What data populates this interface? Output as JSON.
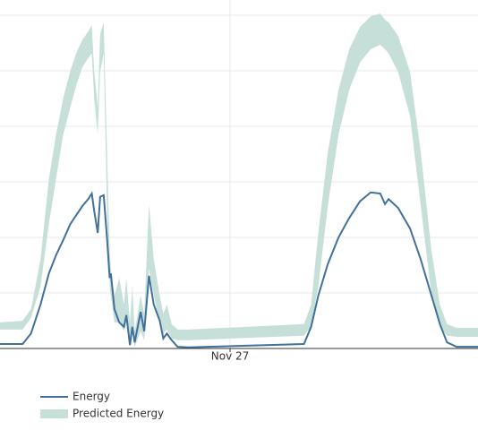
{
  "chart_data": {
    "type": "line",
    "x": [
      4.7,
      6.6,
      7.3,
      8.1,
      8.8,
      9.4,
      10.0,
      10.6,
      11.1,
      11.6,
      12.1,
      12.4,
      12.6,
      12.9,
      13.1,
      13.4,
      13.7,
      13.9,
      14.0,
      14.3,
      14.7,
      15.1,
      15.3,
      15.6,
      15.8,
      16.0,
      16.5,
      16.8,
      17.2,
      17.6,
      18.1,
      18.4,
      18.7,
      19.1,
      19.6,
      20.5,
      30.2,
      30.8,
      31.4,
      32.2,
      33.1,
      34.0,
      34.9,
      35.8,
      36.6,
      37.0,
      37.3,
      38.1,
      39.1,
      40.0,
      40.9,
      41.6,
      42.2,
      43.0,
      44.8
    ],
    "series": [
      {
        "name": "Energy",
        "color": "#41709b",
        "values": [
          0.08,
          0.08,
          0.27,
          0.79,
          1.35,
          1.68,
          1.95,
          2.24,
          2.4,
          2.56,
          2.69,
          2.79,
          2.48,
          2.08,
          2.73,
          2.76,
          1.92,
          1.27,
          1.35,
          0.71,
          0.47,
          0.39,
          0.6,
          0.06,
          0.39,
          0.11,
          0.66,
          0.31,
          1.31,
          0.79,
          0.5,
          0.18,
          0.27,
          0.15,
          0.03,
          0.02,
          0.08,
          0.39,
          0.95,
          1.52,
          2.0,
          2.35,
          2.65,
          2.81,
          2.79,
          2.6,
          2.69,
          2.53,
          2.16,
          1.6,
          0.95,
          0.44,
          0.11,
          0.03,
          0.03
        ]
      },
      {
        "name": "Predicted Energy",
        "color": "#c6e0d9",
        "values": [
          0.47,
          0.5,
          0.71,
          1.6,
          3.05,
          3.85,
          4.5,
          5.0,
          5.32,
          5.55,
          5.71,
          5.82,
          5.0,
          4.34,
          5.66,
          5.87,
          3.37,
          1.76,
          1.44,
          0.95,
          1.27,
          0.79,
          1.27,
          0.47,
          1.11,
          0.31,
          0.95,
          0.63,
          2.6,
          1.6,
          0.95,
          0.63,
          0.79,
          0.44,
          0.34,
          0.34,
          0.44,
          0.79,
          2.08,
          3.53,
          4.66,
          5.39,
          5.79,
          5.98,
          6.03,
          5.92,
          5.87,
          5.63,
          4.98,
          3.53,
          1.76,
          0.79,
          0.44,
          0.37,
          0.37
        ],
        "lower": [
          0.34,
          0.34,
          0.55,
          1.11,
          2.24,
          3.05,
          3.85,
          4.34,
          4.74,
          5.06,
          5.23,
          5.31,
          4.5,
          3.85,
          4.98,
          5.31,
          2.24,
          1.11,
          0.95,
          0.47,
          0.47,
          0.31,
          0.47,
          0.06,
          0.31,
          0.02,
          0.31,
          0.15,
          1.44,
          0.95,
          0.47,
          0.27,
          0.34,
          0.18,
          0.15,
          0.15,
          0.23,
          0.39,
          1.11,
          2.56,
          3.85,
          4.66,
          5.15,
          5.39,
          5.47,
          5.39,
          5.31,
          4.98,
          4.18,
          2.56,
          0.95,
          0.39,
          0.23,
          0.21,
          0.21
        ]
      }
    ],
    "xlim": [
      4.7,
      44.8
    ],
    "xticks": [
      {
        "value": 24,
        "label": "Nov 27"
      }
    ],
    "ylim": [
      0,
      6.2
    ],
    "yticks": [
      1,
      2,
      3,
      4,
      5,
      6
    ],
    "grid": true
  }
}
